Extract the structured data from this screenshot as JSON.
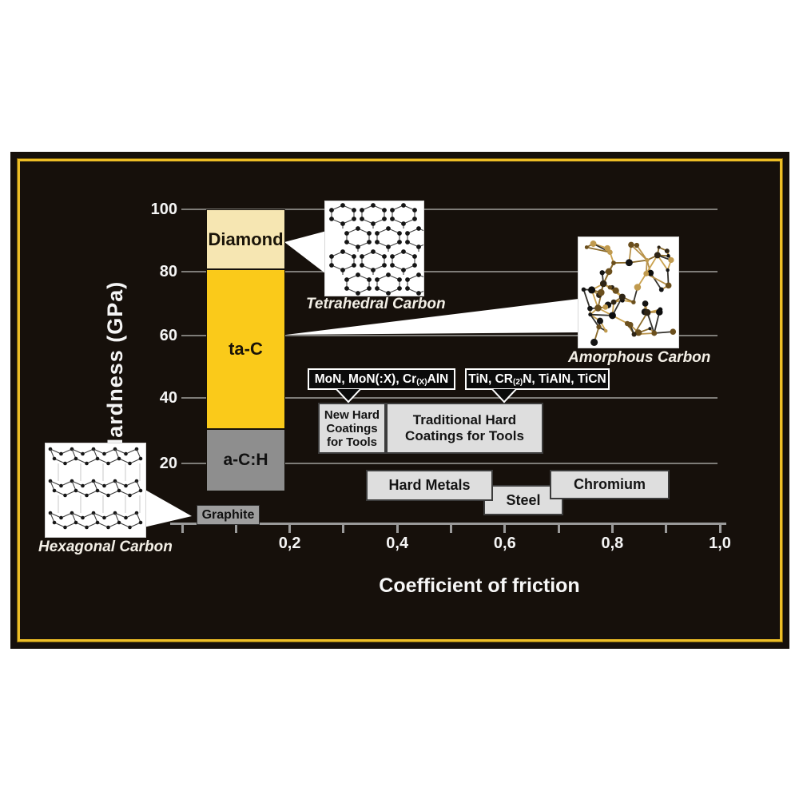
{
  "axes": {
    "y_label": "Hardness (GPa)",
    "y_ticks": [
      "100",
      "80",
      "60",
      "40",
      "20"
    ],
    "x_label": "Coefficient of friction",
    "x_ticks": [
      "0,2",
      "0,4",
      "0,6",
      "0,8",
      "1,0"
    ]
  },
  "bar": {
    "diamond_label": "Diamond",
    "tac_label": "ta-C",
    "ach_label": "a-C:H",
    "graphite_label": "Graphite"
  },
  "callouts": {
    "new_hard": {
      "pre": "MoN, MoN(:X), Cr",
      "sub": "(X)",
      "post": "AlN"
    },
    "traditional": {
      "pre": "TiN, CR",
      "sub": "(2)",
      "post": "N, TiAlN, TiCN"
    }
  },
  "boxes": {
    "new_hard_lines": [
      "New Hard",
      "Coatings",
      "for Tools"
    ],
    "traditional_lines": [
      "Traditional Hard",
      "Coatings for Tools"
    ],
    "hard_metals": "Hard Metals",
    "steel": "Steel",
    "chromium": "Chromium"
  },
  "captions": {
    "tetrahedral": "Tetrahedral Carbon",
    "amorphous": "Amorphous Carbon",
    "hexagonal": "Hexagonal Carbon"
  },
  "colors": {
    "panel_background": "#16100b",
    "gold_border": "#EDBE26",
    "diamond_fill": "#F6E6B2",
    "tac_fill": "#FACA1A",
    "ach_fill": "#8E8E8E",
    "graphite_fill": "#9E9E9E",
    "gray_box_fill": "#DEDEDE",
    "gridline": "#7e7c78"
  },
  "chart_data": {
    "type": "bar",
    "title": "",
    "xlabel": "Coefficient of friction",
    "ylabel": "Hardness (GPa)",
    "xlim": [
      0,
      1.0
    ],
    "ylim": [
      0,
      100
    ],
    "x_tick_labels": [
      "0,2",
      "0,4",
      "0,6",
      "0,8",
      "1,0"
    ],
    "y_tick_labels": [
      100,
      80,
      60,
      40,
      20
    ],
    "grid": "horizontal",
    "materials": [
      {
        "name": "Diamond",
        "friction_range": [
          0.05,
          0.19
        ],
        "hardness_gpa_range": [
          82,
          100
        ],
        "structure": "Tetrahedral Carbon"
      },
      {
        "name": "ta-C",
        "friction_range": [
          0.05,
          0.19
        ],
        "hardness_gpa_range": [
          31,
          82
        ],
        "structure": "Amorphous Carbon"
      },
      {
        "name": "a-C:H",
        "friction_range": [
          0.05,
          0.19
        ],
        "hardness_gpa_range": [
          11,
          31
        ]
      },
      {
        "name": "Graphite",
        "friction_range": [
          0.03,
          0.15
        ],
        "hardness_gpa_range": [
          0,
          7
        ],
        "structure": "Hexagonal Carbon"
      },
      {
        "name": "New Hard Coatings for Tools",
        "friction_range": [
          0.25,
          0.38
        ],
        "hardness_gpa_range": [
          23,
          39
        ],
        "examples": "MoN, MoN(:X), Cr(X)AlN"
      },
      {
        "name": "Traditional Hard Coatings for Tools",
        "friction_range": [
          0.38,
          0.67
        ],
        "hardness_gpa_range": [
          23,
          39
        ],
        "examples": "TiN, CR(2)N, TiAlN, TiCN"
      },
      {
        "name": "Hard Metals",
        "friction_range": [
          0.34,
          0.58
        ],
        "hardness_gpa_range": [
          8,
          18
        ]
      },
      {
        "name": "Steel",
        "friction_range": [
          0.56,
          0.71
        ],
        "hardness_gpa_range": [
          3,
          13
        ]
      },
      {
        "name": "Chromium",
        "friction_range": [
          0.69,
          0.91
        ],
        "hardness_gpa_range": [
          8,
          18
        ]
      }
    ]
  }
}
